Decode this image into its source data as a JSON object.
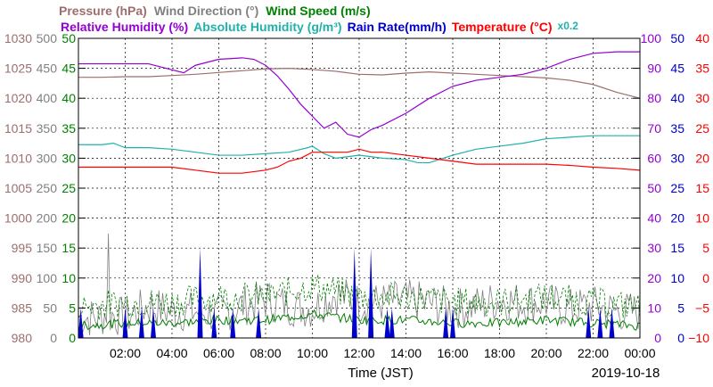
{
  "colors": {
    "pressure": "#9c6e6e",
    "wind_direction": "#808080",
    "wind_speed": "#008000",
    "relative_humidity": "#9400d3",
    "absolute_humidity": "#20b2aa",
    "rain_rate": "#0000cd",
    "temperature": "#ff0000",
    "grid": "#000000"
  },
  "legend": {
    "line1": [
      {
        "key": "pressure",
        "text": "Pressure (hPa)"
      },
      {
        "key": "wind_direction",
        "text": "Wind Direction (°)"
      },
      {
        "key": "wind_speed",
        "text": "Wind Speed (m/s)"
      }
    ],
    "line2": [
      {
        "key": "relative_humidity",
        "text": "Relative Humidity (%)"
      },
      {
        "key": "absolute_humidity",
        "text": "Absolute Humidity (g/m³)"
      },
      {
        "key": "rain_rate",
        "text": "Rain Rate(mm/h)"
      },
      {
        "key": "temperature",
        "text": "Temperature (°C)"
      },
      {
        "key": "absolute_humidity",
        "text": "x0.2"
      }
    ]
  },
  "chart_data": {
    "type": "line",
    "xlabel": "Time (JST)",
    "date_label": "2019-10-18",
    "x_range": [
      "00:00",
      "24:00"
    ],
    "x_tick_labels": [
      "02:00",
      "04:00",
      "06:00",
      "08:00",
      "10:00",
      "12:00",
      "14:00",
      "16:00",
      "18:00",
      "20:00",
      "22:00",
      "00:00"
    ],
    "grid": true,
    "axes": {
      "pressure": {
        "range": [
          980,
          1030
        ],
        "ticks": [
          980,
          985,
          990,
          995,
          1000,
          1005,
          1010,
          1015,
          1020,
          1025,
          1030
        ],
        "side": "left"
      },
      "wind_direction": {
        "range": [
          0,
          500
        ],
        "ticks": [
          0,
          50,
          100,
          150,
          200,
          250,
          300,
          350,
          400,
          450,
          500
        ],
        "side": "left"
      },
      "wind_speed": {
        "range": [
          0,
          50
        ],
        "ticks": [
          0,
          5,
          10,
          15,
          20,
          25,
          30,
          35,
          40,
          45,
          50
        ],
        "side": "left"
      },
      "relative_humidity": {
        "range": [
          0,
          100
        ],
        "ticks": [
          0,
          10,
          20,
          30,
          40,
          50,
          60,
          70,
          80,
          90,
          100
        ],
        "side": "right"
      },
      "rain_rate": {
        "range": [
          0,
          50
        ],
        "ticks": [
          0,
          5,
          10,
          15,
          20,
          25,
          30,
          35,
          40,
          45,
          50
        ],
        "side": "right"
      },
      "temperature": {
        "range": [
          -10,
          40
        ],
        "ticks": [
          -10,
          -5,
          0,
          5,
          10,
          15,
          20,
          25,
          30,
          35,
          40
        ],
        "side": "right"
      }
    },
    "series": [
      {
        "name": "Pressure (hPa)",
        "key": "pressure",
        "axis": "pressure",
        "x": [
          0,
          1,
          2,
          3,
          4,
          5,
          6,
          7,
          8,
          9,
          10,
          11,
          12,
          13,
          14,
          15,
          16,
          17,
          18,
          19,
          20,
          21,
          22,
          23,
          24
        ],
        "y": [
          1023.5,
          1023.5,
          1023.6,
          1023.6,
          1023.8,
          1024.0,
          1024.3,
          1024.6,
          1024.9,
          1025.0,
          1024.8,
          1024.5,
          1024.0,
          1023.9,
          1024.2,
          1024.4,
          1024.2,
          1024.0,
          1023.8,
          1023.6,
          1023.4,
          1023.0,
          1022.3,
          1021.0,
          1020.0
        ]
      },
      {
        "name": "Relative Humidity (%)",
        "key": "relative_humidity",
        "axis": "relative_humidity",
        "x": [
          0,
          1,
          2,
          3,
          4,
          4.5,
          5,
          6,
          7,
          7.5,
          8,
          8.5,
          9,
          9.5,
          10,
          10.5,
          11,
          11.5,
          12,
          12.5,
          13,
          14,
          15,
          16,
          17,
          18,
          19,
          20,
          21,
          22,
          23,
          24
        ],
        "y": [
          91.5,
          91.5,
          91.5,
          91.5,
          89.5,
          88.5,
          91.0,
          93.0,
          93.5,
          93.0,
          91.0,
          87.5,
          83.0,
          78.0,
          74.0,
          70.0,
          72.0,
          68.0,
          67.0,
          69.5,
          71.0,
          75.0,
          80.0,
          84.0,
          86.0,
          87.0,
          88.0,
          90.0,
          93.0,
          95.0,
          95.5,
          95.5
        ]
      },
      {
        "name": "Absolute Humidity (g/m³)",
        "key": "absolute_humidity",
        "axis": "relative_humidity",
        "multiplier": 0.2,
        "x": [
          0,
          1,
          1.5,
          2,
          3,
          4,
          5,
          6,
          7,
          8,
          9,
          9.8,
          10,
          10.5,
          11,
          11.5,
          12,
          13,
          14,
          14.5,
          15,
          16,
          17,
          18,
          19,
          20,
          21,
          22,
          23,
          24
        ],
        "y": [
          64.5,
          64.5,
          65.0,
          63.5,
          63.5,
          63.0,
          62.0,
          61.0,
          61.0,
          61.5,
          62.0,
          63.5,
          64.0,
          61.5,
          60.0,
          60.5,
          61.0,
          60.0,
          59.5,
          58.5,
          58.5,
          61.0,
          63.0,
          64.0,
          65.0,
          66.5,
          67.0,
          67.5,
          67.5,
          67.5
        ]
      },
      {
        "name": "Temperature (°C)",
        "key": "temperature",
        "axis": "temperature",
        "x": [
          0,
          1,
          2,
          3,
          4,
          5,
          6,
          7,
          8,
          8.5,
          9,
          9.5,
          10,
          10.5,
          11,
          11.5,
          12,
          12.5,
          13,
          14,
          15,
          16,
          17,
          18,
          19,
          20,
          21,
          22,
          23,
          24
        ],
        "y": [
          18.5,
          18.5,
          18.5,
          18.5,
          18.5,
          18.0,
          17.5,
          17.5,
          18.0,
          18.5,
          19.5,
          20.0,
          21.0,
          21.0,
          21.0,
          21.0,
          21.5,
          21.0,
          21.0,
          20.5,
          20.0,
          19.5,
          19.0,
          19.0,
          19.0,
          19.0,
          18.8,
          18.5,
          18.3,
          18.0
        ]
      },
      {
        "name": "Wind Direction (°)",
        "key": "wind_direction",
        "axis": "wind_direction",
        "style": "noisy",
        "x": [
          0,
          1,
          1.2,
          1.25,
          1.3,
          1.4,
          2,
          3,
          4,
          5,
          6,
          7,
          8,
          9,
          10,
          11,
          12,
          13,
          14,
          15,
          16,
          17,
          18,
          19,
          20,
          21,
          22,
          23,
          24
        ],
        "y": [
          20,
          20,
          30,
          340,
          20,
          25,
          20,
          40,
          30,
          30,
          25,
          40,
          50,
          40,
          35,
          60,
          45,
          45,
          50,
          45,
          35,
          40,
          50,
          45,
          45,
          35,
          40,
          30,
          30
        ]
      },
      {
        "name": "Wind Speed (m/s)",
        "key": "wind_speed",
        "axis": "wind_speed",
        "style": "noisy",
        "x": [
          0,
          2,
          4,
          6,
          8,
          10,
          12,
          14,
          16,
          18,
          20,
          22,
          24
        ],
        "y": [
          2.0,
          2.5,
          2.5,
          3.0,
          3.0,
          4.0,
          3.0,
          3.0,
          2.5,
          2.5,
          3.0,
          2.5,
          2.0
        ]
      },
      {
        "name": "Rain Rate(mm/h)",
        "key": "rain_rate",
        "axis": "rain_rate",
        "style": "spikes",
        "x": [
          0.1,
          2.0,
          2.7,
          3.2,
          5.2,
          5.8,
          6.6,
          7.7,
          11.8,
          12.5,
          13.2,
          13.4,
          15.7,
          16.0,
          21.8,
          22.3,
          22.8
        ],
        "y": [
          0.5,
          0.5,
          0.5,
          0.5,
          1.5,
          0.5,
          0.5,
          0.5,
          1.5,
          1.5,
          0.5,
          0.5,
          0.5,
          0.5,
          0.5,
          0.5,
          0.5
        ]
      }
    ]
  }
}
